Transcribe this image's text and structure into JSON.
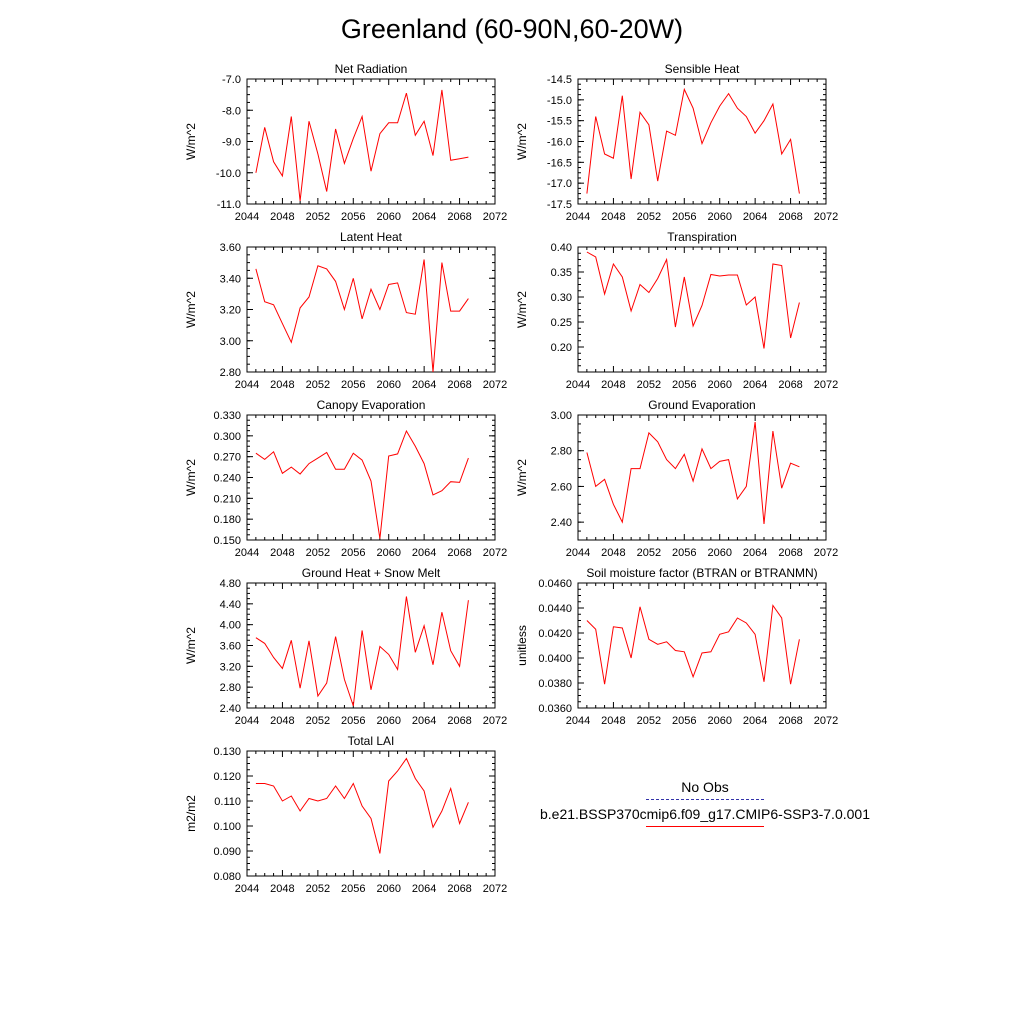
{
  "title": "Greenland (60-90N,60-20W)",
  "legend": {
    "obs_label": "No Obs",
    "obs_color": "#3333aa",
    "model_label": "b.e21.BSSP370cmip6.f09_g17.CMIP6-SSP3-7.0.001",
    "model_color": "#ff0000"
  },
  "chart_data": [
    {
      "type": "line",
      "title": "Net Radiation",
      "ylabel": "W/m^2",
      "xlim": [
        2044,
        2072
      ],
      "ylim": [
        -11.0,
        -7.0
      ],
      "xticks": [
        "2044",
        "2048",
        "2052",
        "2056",
        "2060",
        "2064",
        "2068",
        "2072"
      ],
      "yticks": [
        "-11.0",
        "-10.0",
        "-9.0",
        "-8.0",
        "-7.0"
      ],
      "x": [
        2045,
        2046,
        2047,
        2048,
        2049,
        2050,
        2051,
        2052,
        2053,
        2054,
        2055,
        2056,
        2057,
        2058,
        2059,
        2060,
        2061,
        2062,
        2063,
        2064,
        2065,
        2066,
        2067,
        2068,
        2069
      ],
      "y": [
        -10.0,
        -8.55,
        -9.65,
        -10.1,
        -8.2,
        -10.9,
        -8.35,
        -9.4,
        -10.6,
        -8.6,
        -9.7,
        -8.9,
        -8.2,
        -9.95,
        -8.75,
        -8.4,
        -8.4,
        -7.45,
        -8.8,
        -8.35,
        -9.45,
        -7.35,
        -9.6,
        -9.55,
        -9.5
      ]
    },
    {
      "type": "line",
      "title": "Sensible Heat",
      "ylabel": "W/m^2",
      "xlim": [
        2044,
        2072
      ],
      "ylim": [
        -17.5,
        -14.5
      ],
      "xticks": [
        "2044",
        "2048",
        "2052",
        "2056",
        "2060",
        "2064",
        "2068",
        "2072"
      ],
      "yticks": [
        "-17.5",
        "-17.0",
        "-16.5",
        "-16.0",
        "-15.5",
        "-15.0",
        "-14.5"
      ],
      "x": [
        2045,
        2046,
        2047,
        2048,
        2049,
        2050,
        2051,
        2052,
        2053,
        2054,
        2055,
        2056,
        2057,
        2058,
        2059,
        2060,
        2061,
        2062,
        2063,
        2064,
        2065,
        2066,
        2067,
        2068,
        2069
      ],
      "y": [
        -17.25,
        -15.4,
        -16.3,
        -16.4,
        -14.9,
        -16.9,
        -15.3,
        -15.6,
        -16.95,
        -15.75,
        -15.85,
        -14.75,
        -15.2,
        -16.05,
        -15.55,
        -15.15,
        -14.85,
        -15.2,
        -15.4,
        -15.8,
        -15.5,
        -15.1,
        -16.3,
        -15.95,
        -17.25
      ]
    },
    {
      "type": "line",
      "title": "Latent Heat",
      "ylabel": "W/m^2",
      "xlim": [
        2044,
        2072
      ],
      "ylim": [
        2.8,
        3.6
      ],
      "xticks": [
        "2044",
        "2048",
        "2052",
        "2056",
        "2060",
        "2064",
        "2068",
        "2072"
      ],
      "yticks": [
        "2.80",
        "3.00",
        "3.20",
        "3.40",
        "3.60"
      ],
      "x": [
        2045,
        2046,
        2047,
        2048,
        2049,
        2050,
        2051,
        2052,
        2053,
        2054,
        2055,
        2056,
        2057,
        2058,
        2059,
        2060,
        2061,
        2062,
        2063,
        2064,
        2065,
        2066,
        2067,
        2068,
        2069
      ],
      "y": [
        3.46,
        3.25,
        3.23,
        3.11,
        2.99,
        3.21,
        3.28,
        3.48,
        3.46,
        3.38,
        3.2,
        3.4,
        3.14,
        3.33,
        3.2,
        3.36,
        3.37,
        3.18,
        3.17,
        3.52,
        2.8,
        3.5,
        3.19,
        3.19,
        3.27
      ]
    },
    {
      "type": "line",
      "title": "Transpiration",
      "ylabel": "W/m^2",
      "xlim": [
        2044,
        2072
      ],
      "ylim": [
        0.15,
        0.4
      ],
      "xticks": [
        "2044",
        "2048",
        "2052",
        "2056",
        "2060",
        "2064",
        "2068",
        "2072"
      ],
      "yticks": [
        "0.20",
        "0.25",
        "0.30",
        "0.35",
        "0.40"
      ],
      "x": [
        2045,
        2046,
        2047,
        2048,
        2049,
        2050,
        2051,
        2052,
        2053,
        2054,
        2055,
        2056,
        2057,
        2058,
        2059,
        2060,
        2061,
        2062,
        2063,
        2064,
        2065,
        2066,
        2067,
        2068,
        2069
      ],
      "y": [
        0.39,
        0.38,
        0.306,
        0.366,
        0.34,
        0.272,
        0.325,
        0.309,
        0.337,
        0.375,
        0.24,
        0.34,
        0.242,
        0.283,
        0.345,
        0.342,
        0.344,
        0.344,
        0.284,
        0.3,
        0.197,
        0.366,
        0.363,
        0.218,
        0.289
      ]
    },
    {
      "type": "line",
      "title": "Canopy Evaporation",
      "ylabel": "W/m^2",
      "xlim": [
        2044,
        2072
      ],
      "ylim": [
        0.15,
        0.33
      ],
      "xticks": [
        "2044",
        "2048",
        "2052",
        "2056",
        "2060",
        "2064",
        "2068",
        "2072"
      ],
      "yticks": [
        "0.150",
        "0.180",
        "0.210",
        "0.240",
        "0.270",
        "0.300",
        "0.330"
      ],
      "x": [
        2045,
        2046,
        2047,
        2048,
        2049,
        2050,
        2051,
        2052,
        2053,
        2054,
        2055,
        2056,
        2057,
        2058,
        2059,
        2060,
        2061,
        2062,
        2063,
        2064,
        2065,
        2066,
        2067,
        2068,
        2069
      ],
      "y": [
        0.275,
        0.266,
        0.277,
        0.246,
        0.255,
        0.245,
        0.26,
        0.268,
        0.276,
        0.252,
        0.252,
        0.275,
        0.265,
        0.235,
        0.152,
        0.271,
        0.274,
        0.307,
        0.285,
        0.26,
        0.215,
        0.221,
        0.234,
        0.233,
        0.268
      ]
    },
    {
      "type": "line",
      "title": "Ground Evaporation",
      "ylabel": "W/m^2",
      "xlim": [
        2044,
        2072
      ],
      "ylim": [
        2.3,
        3.0
      ],
      "xticks": [
        "2044",
        "2048",
        "2052",
        "2056",
        "2060",
        "2064",
        "2068",
        "2072"
      ],
      "yticks": [
        "2.40",
        "2.60",
        "2.80",
        "3.00"
      ],
      "x": [
        2045,
        2046,
        2047,
        2048,
        2049,
        2050,
        2051,
        2052,
        2053,
        2054,
        2055,
        2056,
        2057,
        2058,
        2059,
        2060,
        2061,
        2062,
        2063,
        2064,
        2065,
        2066,
        2067,
        2068,
        2069
      ],
      "y": [
        2.79,
        2.6,
        2.64,
        2.5,
        2.4,
        2.7,
        2.7,
        2.9,
        2.85,
        2.75,
        2.7,
        2.78,
        2.63,
        2.81,
        2.7,
        2.74,
        2.75,
        2.53,
        2.6,
        2.96,
        2.39,
        2.91,
        2.59,
        2.73,
        2.71
      ]
    },
    {
      "type": "line",
      "title": "Ground Heat + Snow Melt",
      "ylabel": "W/m^2",
      "xlim": [
        2044,
        2072
      ],
      "ylim": [
        2.4,
        4.8
      ],
      "xticks": [
        "2044",
        "2048",
        "2052",
        "2056",
        "2060",
        "2064",
        "2068",
        "2072"
      ],
      "yticks": [
        "2.40",
        "2.80",
        "3.20",
        "3.60",
        "4.00",
        "4.40",
        "4.80"
      ],
      "x": [
        2045,
        2046,
        2047,
        2048,
        2049,
        2050,
        2051,
        2052,
        2053,
        2054,
        2055,
        2056,
        2057,
        2058,
        2059,
        2060,
        2061,
        2062,
        2063,
        2064,
        2065,
        2066,
        2067,
        2068,
        2069
      ],
      "y": [
        3.75,
        3.64,
        3.37,
        3.16,
        3.7,
        2.78,
        3.69,
        2.63,
        2.88,
        3.77,
        2.95,
        2.44,
        3.89,
        2.75,
        3.58,
        3.43,
        3.14,
        4.54,
        3.47,
        3.98,
        3.23,
        4.24,
        3.5,
        3.2,
        4.47
      ]
    },
    {
      "type": "line",
      "title": "Soil moisture factor (BTRAN or BTRANMN)",
      "ylabel": "unitless",
      "xlim": [
        2044,
        2072
      ],
      "ylim": [
        0.036,
        0.046
      ],
      "xticks": [
        "2044",
        "2048",
        "2052",
        "2056",
        "2060",
        "2064",
        "2068",
        "2072"
      ],
      "yticks": [
        "0.0360",
        "0.0380",
        "0.0400",
        "0.0420",
        "0.0440",
        "0.0460"
      ],
      "x": [
        2045,
        2046,
        2047,
        2048,
        2049,
        2050,
        2051,
        2052,
        2053,
        2054,
        2055,
        2056,
        2057,
        2058,
        2059,
        2060,
        2061,
        2062,
        2063,
        2064,
        2065,
        2066,
        2067,
        2068,
        2069
      ],
      "y": [
        0.043,
        0.0423,
        0.0379,
        0.0425,
        0.0424,
        0.04,
        0.0441,
        0.0415,
        0.0411,
        0.0413,
        0.0406,
        0.0405,
        0.0385,
        0.0404,
        0.0405,
        0.0419,
        0.0421,
        0.0432,
        0.0428,
        0.0419,
        0.0381,
        0.0442,
        0.0432,
        0.0379,
        0.0415
      ]
    },
    {
      "type": "line",
      "title": "Total LAI",
      "ylabel": "m2/m2",
      "xlim": [
        2044,
        2072
      ],
      "ylim": [
        0.08,
        0.13
      ],
      "xticks": [
        "2044",
        "2048",
        "2052",
        "2056",
        "2060",
        "2064",
        "2068",
        "2072"
      ],
      "yticks": [
        "0.080",
        "0.090",
        "0.100",
        "0.110",
        "0.120",
        "0.130"
      ],
      "x": [
        2045,
        2046,
        2047,
        2048,
        2049,
        2050,
        2051,
        2052,
        2053,
        2054,
        2055,
        2056,
        2057,
        2058,
        2059,
        2060,
        2061,
        2062,
        2063,
        2064,
        2065,
        2066,
        2067,
        2068,
        2069
      ],
      "y": [
        0.117,
        0.117,
        0.116,
        0.11,
        0.112,
        0.106,
        0.111,
        0.11,
        0.111,
        0.116,
        0.111,
        0.117,
        0.108,
        0.103,
        0.089,
        0.118,
        0.122,
        0.127,
        0.119,
        0.114,
        0.0995,
        0.106,
        0.115,
        0.101,
        0.1095
      ]
    }
  ]
}
